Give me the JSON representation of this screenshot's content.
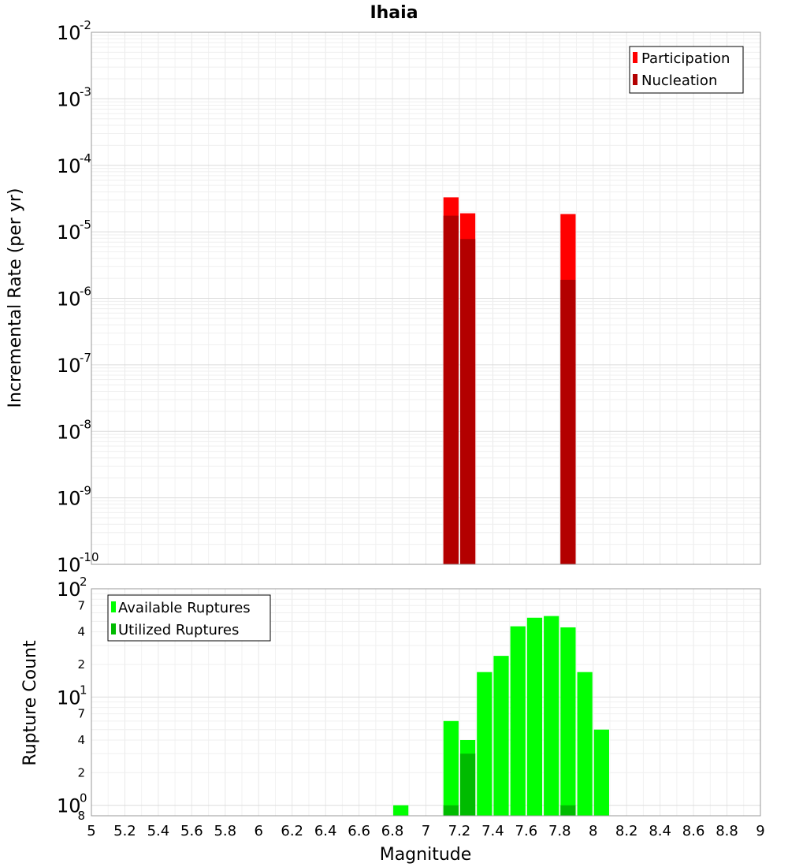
{
  "chart_data": [
    {
      "type": "bar",
      "title": "Ihaia",
      "xlabel": "",
      "ylabel": "Incremental Rate (per yr)",
      "yscale": "log",
      "xlim": [
        5,
        9
      ],
      "ylim": [
        1e-10,
        0.01
      ],
      "y_ticks": [
        {
          "base": "10",
          "exp": "-2"
        },
        {
          "base": "10",
          "exp": "-3"
        },
        {
          "base": "10",
          "exp": "-4"
        },
        {
          "base": "10",
          "exp": "-5"
        },
        {
          "base": "10",
          "exp": "-6"
        },
        {
          "base": "10",
          "exp": "-7"
        },
        {
          "base": "10",
          "exp": "-8"
        },
        {
          "base": "10",
          "exp": "-9"
        },
        {
          "base": "10",
          "exp": "-10"
        }
      ],
      "grid": true,
      "legend_position": "top-right",
      "series": [
        {
          "name": "Participation",
          "color": "#ff0000",
          "x": [
            7.15,
            7.25,
            7.85
          ],
          "values": [
            3.3e-05,
            1.9e-05,
            1.85e-05
          ]
        },
        {
          "name": "Nucleation",
          "color": "#b30000",
          "x": [
            7.15,
            7.25,
            7.85
          ],
          "values": [
            1.75e-05,
            7.8e-06,
            1.9e-06
          ]
        }
      ]
    },
    {
      "type": "bar",
      "xlabel": "Magnitude",
      "ylabel": "Rupture Count",
      "yscale": "log",
      "xlim": [
        5,
        9
      ],
      "ylim": [
        0.8,
        100
      ],
      "x_ticks": [
        "5",
        "5.2",
        "5.4",
        "5.6",
        "5.8",
        "6",
        "6.2",
        "6.4",
        "6.6",
        "6.8",
        "7",
        "7.2",
        "7.4",
        "7.6",
        "7.8",
        "8",
        "8.2",
        "8.4",
        "8.6",
        "8.8",
        "9"
      ],
      "y_ticks": [
        {
          "base": "10",
          "exp": "2"
        },
        {
          "base": "10",
          "exp": "1"
        },
        {
          "base": "10",
          "exp": "0"
        }
      ],
      "y_minor_labels": [
        "7",
        "4",
        "2",
        "7",
        "4",
        "2",
        "8"
      ],
      "grid": true,
      "legend_position": "top-left",
      "series": [
        {
          "name": "Available Ruptures",
          "color": "#00ff00",
          "x": [
            6.85,
            7.15,
            7.25,
            7.35,
            7.45,
            7.55,
            7.65,
            7.75,
            7.85,
            7.95,
            8.05
          ],
          "values": [
            1,
            6,
            4,
            17,
            24,
            45,
            54,
            56,
            44,
            17,
            5
          ]
        },
        {
          "name": "Utilized Ruptures",
          "color": "#00bb00",
          "x": [
            7.15,
            7.25,
            7.85
          ],
          "values": [
            1,
            3,
            1
          ]
        }
      ]
    }
  ]
}
